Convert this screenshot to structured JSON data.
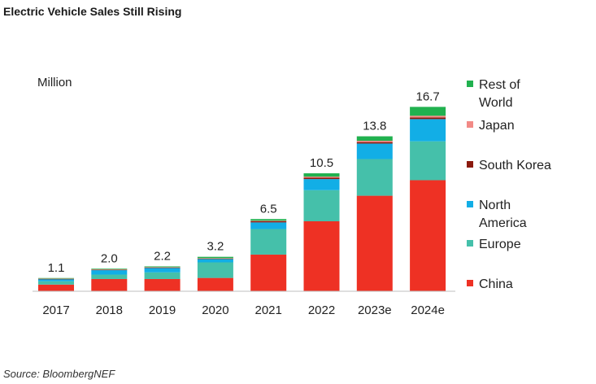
{
  "title": "Electric Vehicle Sales Still Rising",
  "source": "Source: BloombergNEF",
  "chart_data": {
    "type": "bar",
    "stacked": true,
    "unit_label": "Million",
    "categories": [
      "2017",
      "2018",
      "2019",
      "2020",
      "2021",
      "2022",
      "2023e",
      "2024e"
    ],
    "totals": [
      "1.1",
      "2.0",
      "2.2",
      "3.2",
      "6.5",
      "10.5",
      "13.8",
      "16.7"
    ],
    "ylim": [
      0,
      16.7
    ],
    "legend_position": "right",
    "series": [
      {
        "name": "China",
        "color": "#ee3124",
        "values": [
          0.6,
          1.1,
          1.1,
          1.2,
          3.3,
          6.3,
          8.6,
          10.0
        ]
      },
      {
        "name": "Europe",
        "color": "#45c0aa",
        "values": [
          0.3,
          0.4,
          0.6,
          1.4,
          2.3,
          2.8,
          3.3,
          3.5
        ]
      },
      {
        "name": "North\nAmerica",
        "color": "#12aee6",
        "values": [
          0.2,
          0.4,
          0.4,
          0.3,
          0.6,
          1.0,
          1.4,
          2.0
        ]
      },
      {
        "name": "South Korea",
        "color": "#8b1a0e",
        "values": [
          0.02,
          0.04,
          0.04,
          0.05,
          0.1,
          0.12,
          0.13,
          0.15
        ]
      },
      {
        "name": "Japan",
        "color": "#f28a86",
        "values": [
          0.02,
          0.03,
          0.03,
          0.03,
          0.05,
          0.1,
          0.12,
          0.15
        ]
      },
      {
        "name": "Rest of\nWorld",
        "color": "#21b14f",
        "values": [
          0.05,
          0.06,
          0.07,
          0.12,
          0.15,
          0.3,
          0.4,
          0.8
        ]
      }
    ],
    "legend_order": [
      "Rest of\nWorld",
      "Japan",
      "South Korea",
      "North\nAmerica",
      "Europe",
      "China"
    ]
  }
}
